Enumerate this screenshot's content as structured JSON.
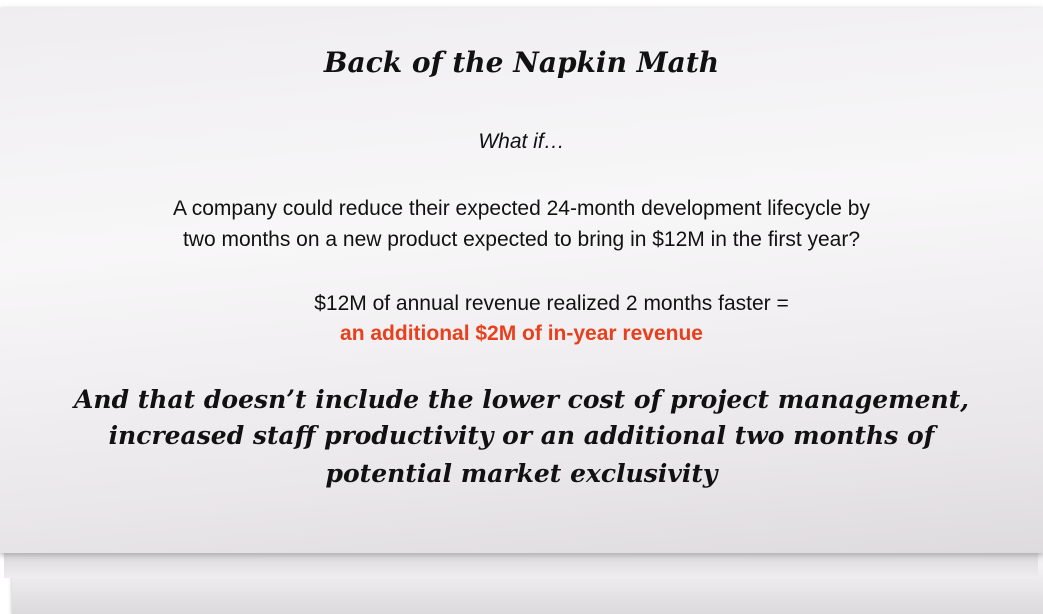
{
  "title": "Back of the Napkin Math",
  "intro": "What if…",
  "question": [
    "A company could reduce their expected 24-month development lifecycle by",
    "two months on a new product expected to bring in $12M in the first year?"
  ],
  "equation": "$12M of annual revenue realized 2 months faster =",
  "result": "an additional $2M of in-year revenue",
  "closing": [
    "And that doesn’t include the lower cost of project management,",
    "increased staff productivity or an additional two months of",
    "potential market exclusivity"
  ]
}
